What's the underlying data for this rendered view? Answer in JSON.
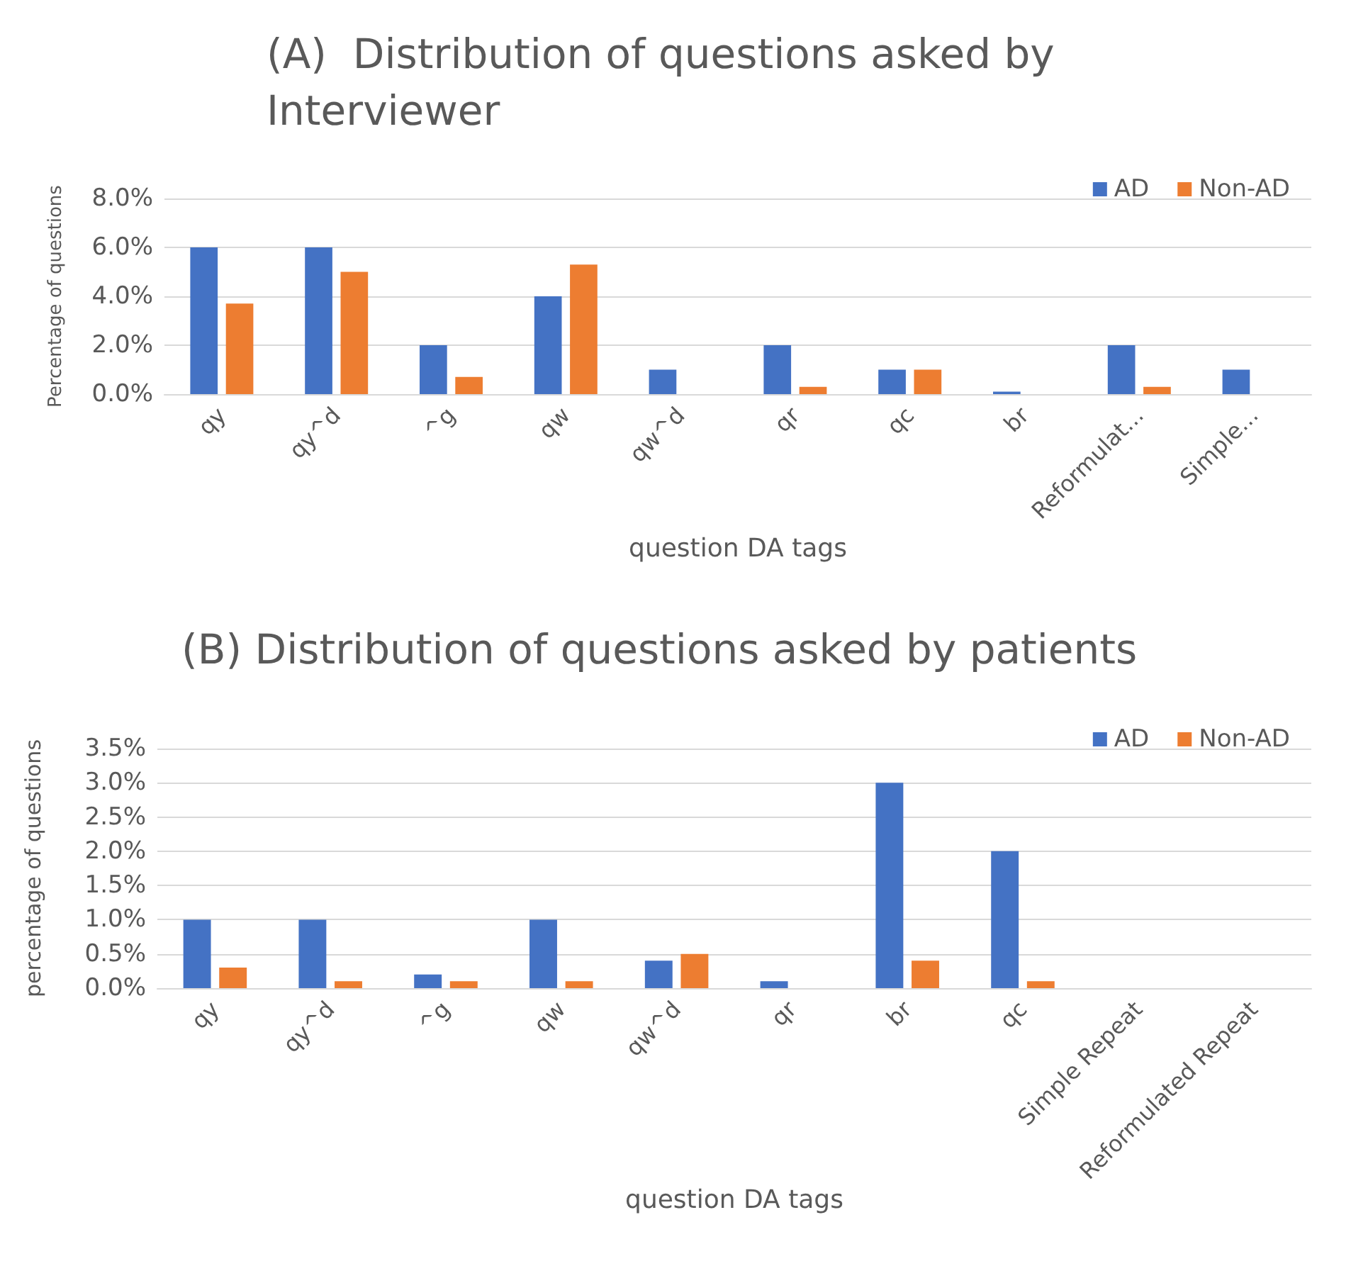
{
  "chart_data": [
    {
      "type": "bar",
      "title": "(A)  Distribution of questions asked by Interviewer",
      "xlabel": "question DA tags",
      "ylabel": "Percentage of questions",
      "categories": [
        "qy",
        "qy^d",
        "^g",
        "qw",
        "qw^d",
        "qr",
        "qc",
        "br",
        "Reformulat...",
        "Simple..."
      ],
      "series": [
        {
          "name": "AD",
          "color": "#4472c4",
          "values": [
            6,
            6,
            2,
            4,
            1,
            2,
            1,
            0.1,
            2,
            1
          ]
        },
        {
          "name": "Non-AD",
          "color": "#ed7d31",
          "values": [
            3.7,
            5,
            0.7,
            5.3,
            0,
            0.3,
            1,
            0,
            0.3,
            0
          ]
        }
      ],
      "ylim": [
        0,
        8
      ],
      "yticks": [
        {
          "value": 0,
          "label": "0.0%"
        },
        {
          "value": 2,
          "label": "2.0%"
        },
        {
          "value": 4,
          "label": "4.0%"
        },
        {
          "value": 6,
          "label": "6.0%"
        },
        {
          "value": 8,
          "label": "8.0%"
        }
      ],
      "grid": "y",
      "legend": "top right"
    },
    {
      "type": "bar",
      "title": "(B) Distribution of questions asked by patients",
      "xlabel": "question DA tags",
      "ylabel": "percentage of questions",
      "categories": [
        "qy",
        "qy^d",
        "^g",
        "qw",
        "qw^d",
        "qr",
        "br",
        "qc",
        "Simple Repeat",
        "Reformulated Repeat"
      ],
      "series": [
        {
          "name": "AD",
          "color": "#4472c4",
          "values": [
            1,
            1,
            0.2,
            1,
            0.4,
            0.1,
            3,
            2,
            0,
            0
          ]
        },
        {
          "name": "Non-AD",
          "color": "#ed7d31",
          "values": [
            0.3,
            0.1,
            0.1,
            0.1,
            0.5,
            0,
            0.4,
            0.1,
            0,
            0
          ]
        }
      ],
      "ylim": [
        0,
        3.5
      ],
      "yticks": [
        {
          "value": 0,
          "label": "0.0%"
        },
        {
          "value": 0.5,
          "label": "0.5%"
        },
        {
          "value": 1,
          "label": "1.0%"
        },
        {
          "value": 1.5,
          "label": "1.5%"
        },
        {
          "value": 2,
          "label": "2.0%"
        },
        {
          "value": 2.5,
          "label": "2.5%"
        },
        {
          "value": 3,
          "label": "3.0%"
        },
        {
          "value": 3.5,
          "label": "3.5%"
        }
      ],
      "grid": "y",
      "legend": "top right"
    }
  ]
}
